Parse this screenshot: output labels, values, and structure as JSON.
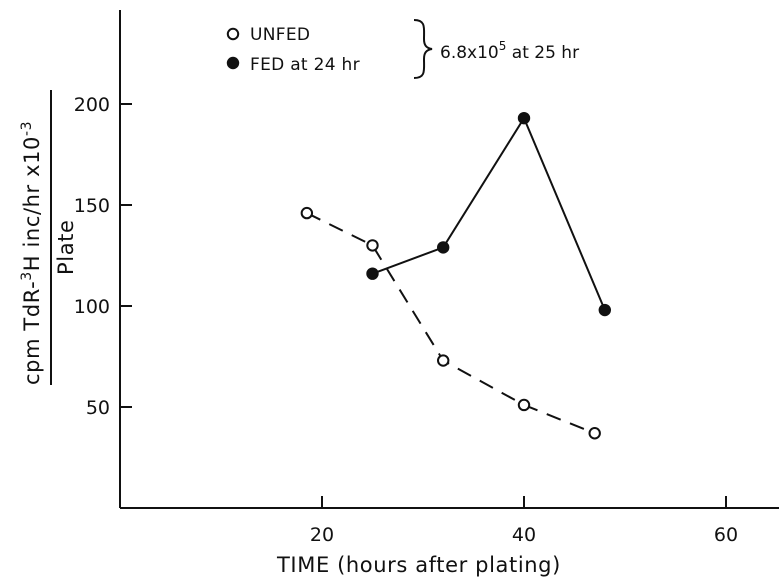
{
  "chart_data": {
    "type": "line",
    "title": "",
    "xlabel": "TIME (hours after plating)",
    "ylabel": "cpm TdR-3H inc/hr x10-3 / Plate",
    "ylabel_parts": {
      "numerator_prefix": "cpm TdR-",
      "superscript_isotope": "3",
      "numerator_middle": "H inc/hr x10",
      "superscript_exponent": "-3",
      "denominator": "Plate"
    },
    "xlim": [
      0,
      65
    ],
    "ylim": [
      0,
      250
    ],
    "xticks": [
      20,
      40,
      60
    ],
    "yticks": [
      50,
      100,
      150,
      200
    ],
    "grid": false,
    "legend_position": "top-center",
    "series": [
      {
        "name": "UNFED",
        "marker": "open-circle",
        "line_style": "dashed",
        "x": [
          18.5,
          25,
          32,
          40,
          47
        ],
        "y": [
          146,
          130,
          73,
          51,
          37
        ]
      },
      {
        "name": "FED at 24 hr",
        "marker": "filled-circle",
        "line_style": "solid",
        "x": [
          25,
          32,
          40,
          48
        ],
        "y": [
          116,
          129,
          193,
          98
        ]
      }
    ],
    "annotation": {
      "prefix": "6.8x10",
      "superscript": "5",
      "suffix": " at 25 hr"
    }
  }
}
